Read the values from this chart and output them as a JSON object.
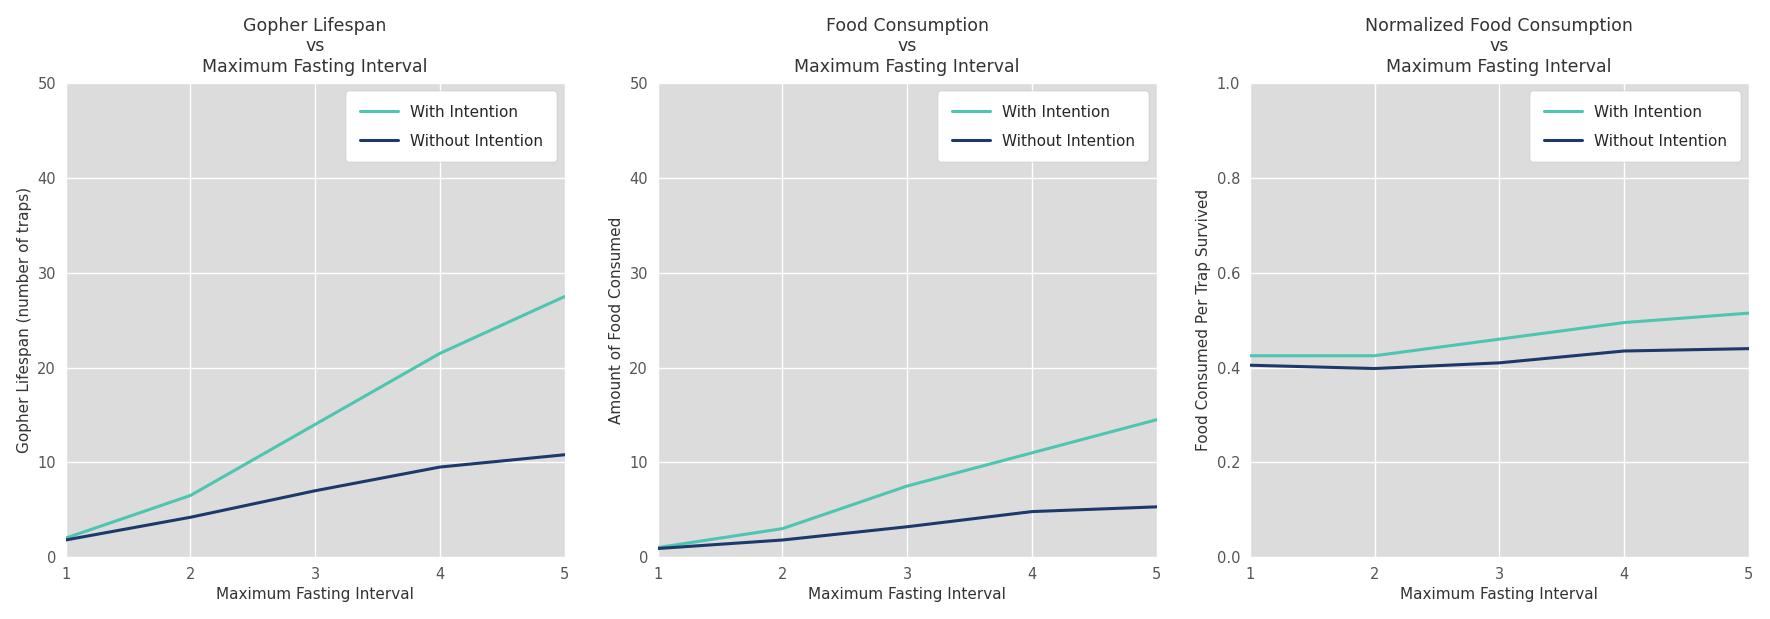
{
  "plot1": {
    "title": "Gopher Lifespan\nvs\nMaximum Fasting Interval",
    "xlabel": "Maximum Fasting Interval",
    "ylabel": "Gopher Lifespan (number of traps)",
    "x": [
      1,
      2,
      3,
      4,
      5
    ],
    "with_intention": [
      2.0,
      6.5,
      14.0,
      21.5,
      27.5
    ],
    "without_intention": [
      1.8,
      4.2,
      7.0,
      9.5,
      10.8
    ],
    "ylim": [
      0,
      50
    ],
    "yticks": [
      0,
      10,
      20,
      30,
      40,
      50
    ]
  },
  "plot2": {
    "title": "Food Consumption\nvs\nMaximum Fasting Interval",
    "xlabel": "Maximum Fasting Interval",
    "ylabel": "Amount of Food Consumed",
    "x": [
      1,
      2,
      3,
      4,
      5
    ],
    "with_intention": [
      1.0,
      3.0,
      7.5,
      11.0,
      14.5
    ],
    "without_intention": [
      0.9,
      1.8,
      3.2,
      4.8,
      5.3
    ],
    "ylim": [
      0,
      50
    ],
    "yticks": [
      0,
      10,
      20,
      30,
      40,
      50
    ]
  },
  "plot3": {
    "title": "Normalized Food Consumption\nvs\nMaximum Fasting Interval",
    "xlabel": "Maximum Fasting Interval",
    "ylabel": "Food Consumed Per Trap Survived",
    "x": [
      1,
      2,
      3,
      4,
      5
    ],
    "with_intention": [
      0.425,
      0.425,
      0.46,
      0.495,
      0.515
    ],
    "without_intention": [
      0.405,
      0.398,
      0.41,
      0.435,
      0.44
    ],
    "ylim": [
      0.0,
      1.0
    ],
    "yticks": [
      0.0,
      0.2,
      0.4,
      0.6,
      0.8,
      1.0
    ]
  },
  "color_with": "#4EC5B0",
  "color_without": "#1B3A6B",
  "legend_with": "With Intention",
  "legend_without": "Without Intention",
  "bg_color": "#DCDCDC",
  "linewidth": 2.2
}
